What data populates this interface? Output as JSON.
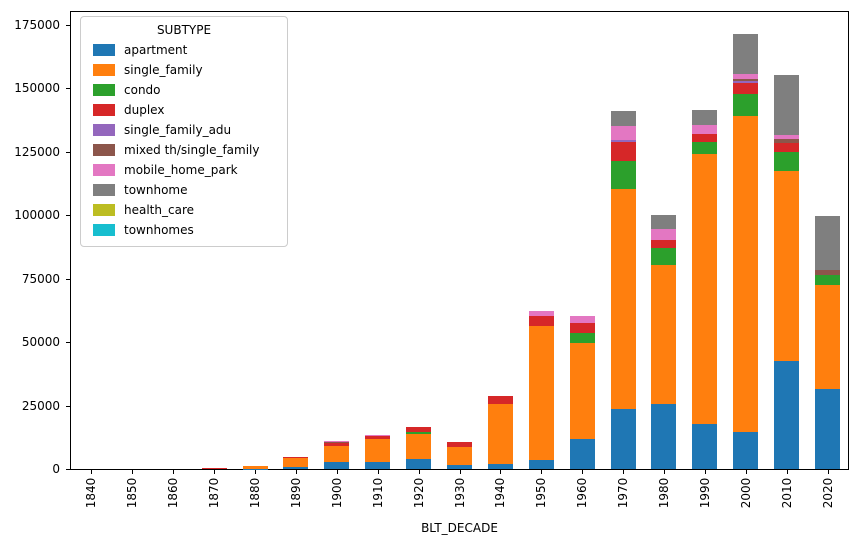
{
  "figure": {
    "xlabel": "BLT_DECADE",
    "legend_title": "SUBTYPE",
    "background": "#ffffff"
  },
  "chart_data": {
    "type": "bar",
    "stacked": true,
    "title": "",
    "xlabel": "BLT_DECADE",
    "ylabel": "",
    "grid": false,
    "legend_title": "SUBTYPE",
    "legend_position": "upper left",
    "ylim": [
      0,
      180000
    ],
    "yticks": [
      0,
      25000,
      50000,
      75000,
      100000,
      125000,
      150000,
      175000
    ],
    "categories": [
      "1840",
      "1850",
      "1860",
      "1870",
      "1880",
      "1890",
      "1900",
      "1910",
      "1920",
      "1930",
      "1940",
      "1950",
      "1960",
      "1970",
      "1980",
      "1990",
      "2000",
      "2010",
      "2020"
    ],
    "series": [
      {
        "name": "apartment",
        "color": "#1f77b4",
        "values": [
          0,
          0,
          0,
          0,
          100,
          700,
          2700,
          2900,
          4000,
          1500,
          1900,
          3500,
          11700,
          23600,
          25500,
          17700,
          14500,
          42500,
          31500
        ]
      },
      {
        "name": "single_family",
        "color": "#ff7f0e",
        "values": [
          0,
          0,
          0,
          400,
          1200,
          3900,
          6300,
          9000,
          9800,
          7300,
          23600,
          53000,
          38000,
          86800,
          54800,
          106400,
          124600,
          75000,
          41000
        ]
      },
      {
        "name": "condo",
        "color": "#2ca02c",
        "values": [
          0,
          0,
          0,
          0,
          0,
          0,
          0,
          0,
          800,
          0,
          0,
          0,
          3900,
          11100,
          6900,
          4800,
          8500,
          7500,
          4000
        ]
      },
      {
        "name": "duplex",
        "color": "#d62728",
        "values": [
          0,
          0,
          0,
          100,
          0,
          200,
          1300,
          1100,
          1900,
          1700,
          3300,
          3800,
          3900,
          7300,
          2900,
          3000,
          4500,
          3500,
          0
        ]
      },
      {
        "name": "single_family_adu",
        "color": "#9467bd",
        "values": [
          0,
          0,
          0,
          0,
          0,
          0,
          0,
          0,
          0,
          0,
          0,
          0,
          0,
          800,
          0,
          0,
          700,
          0,
          0
        ]
      },
      {
        "name": "mixed th/single_family",
        "color": "#8c564b",
        "values": [
          0,
          0,
          0,
          0,
          0,
          0,
          300,
          300,
          0,
          0,
          0,
          0,
          0,
          0,
          0,
          0,
          700,
          1600,
          1900
        ]
      },
      {
        "name": "mobile_home_park",
        "color": "#e377c2",
        "values": [
          0,
          0,
          0,
          0,
          0,
          0,
          300,
          200,
          0,
          0,
          0,
          2100,
          2600,
          5600,
          4600,
          3500,
          1900,
          1600,
          0
        ]
      },
      {
        "name": "townhome",
        "color": "#7f7f7f",
        "values": [
          0,
          0,
          0,
          0,
          0,
          0,
          0,
          0,
          0,
          0,
          0,
          0,
          0,
          5800,
          5200,
          6100,
          16100,
          23400,
          21200
        ]
      },
      {
        "name": "health_care",
        "color": "#bcbd22",
        "values": [
          0,
          0,
          0,
          0,
          0,
          0,
          0,
          0,
          0,
          0,
          0,
          0,
          0,
          0,
          0,
          0,
          0,
          0,
          0
        ]
      },
      {
        "name": "townhomes",
        "color": "#17becf",
        "values": [
          0,
          0,
          0,
          0,
          0,
          0,
          0,
          0,
          0,
          0,
          0,
          0,
          0,
          0,
          0,
          0,
          0,
          0,
          0
        ]
      }
    ]
  }
}
